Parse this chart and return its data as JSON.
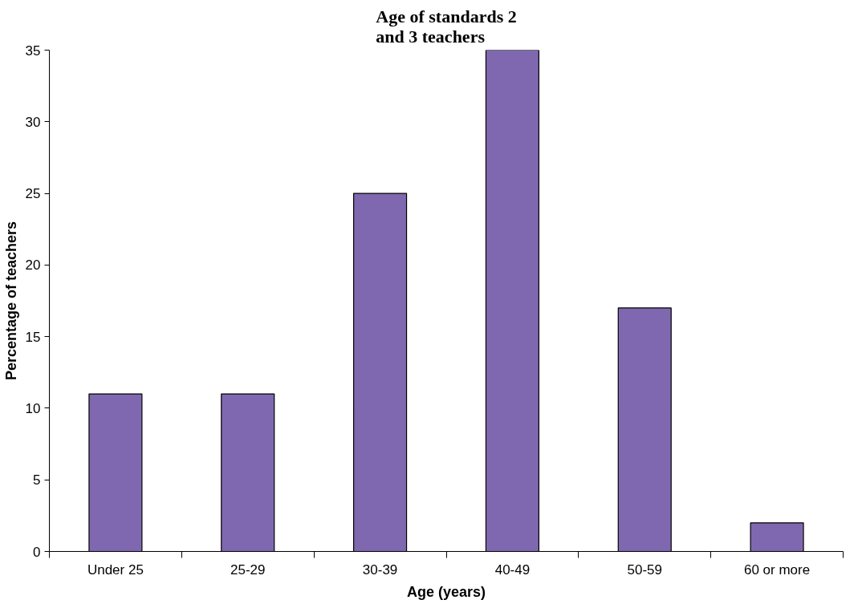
{
  "chart_data": {
    "type": "bar",
    "title": "Age of standards 2 and 3 teachers",
    "xlabel": "Age (years)",
    "ylabel": "Percentage of teachers",
    "categories": [
      "Under 25",
      "25-29",
      "30-39",
      "40-49",
      "50-59",
      "60 or more"
    ],
    "values": [
      11,
      11,
      25,
      35,
      17,
      2
    ],
    "color": "#8068b0",
    "ylim": [
      0,
      35
    ],
    "yticks": [
      0,
      5,
      10,
      15,
      20,
      25,
      30,
      35
    ],
    "grid": false
  }
}
